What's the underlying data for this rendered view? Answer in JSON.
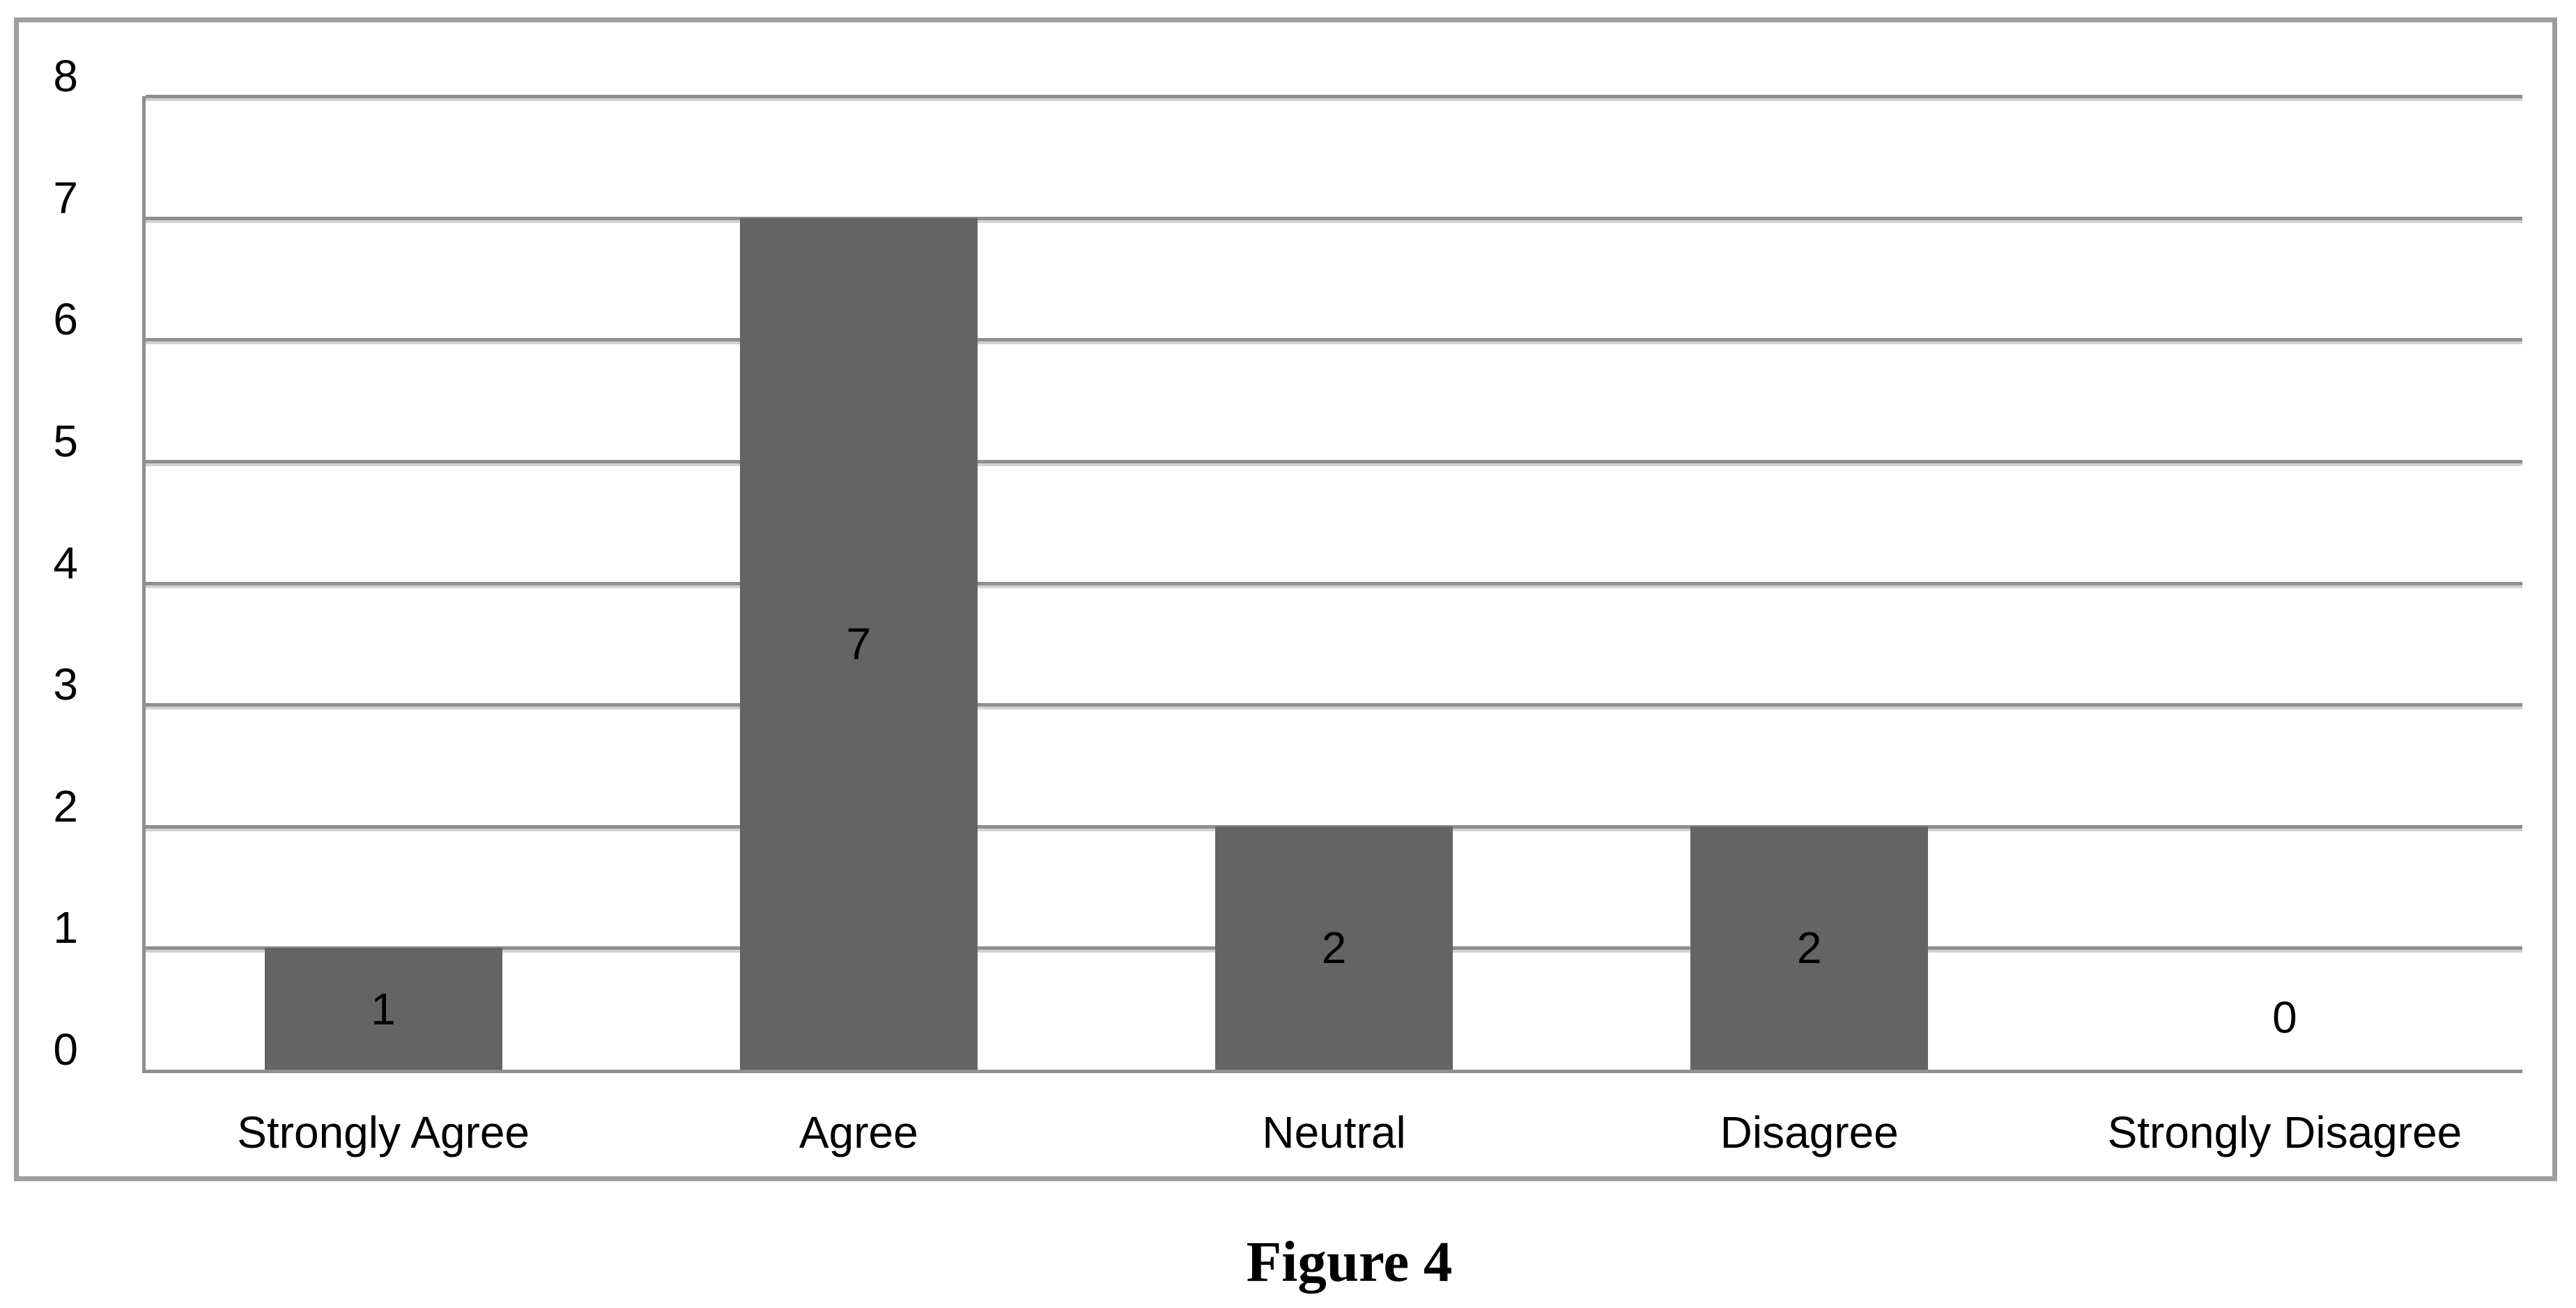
{
  "figure": {
    "caption": "Figure 4"
  },
  "chart_data": {
    "type": "bar",
    "categories": [
      "Strongly Agree",
      "Agree",
      "Neutral",
      "Disagree",
      "Strongly Disagree"
    ],
    "values": [
      1,
      7,
      2,
      2,
      0
    ],
    "data_labels": [
      "1",
      "7",
      "2",
      "2",
      "0"
    ],
    "title": "",
    "xlabel": "",
    "ylabel": "",
    "ylim": [
      0,
      8
    ],
    "yticks": [
      0,
      1,
      2,
      3,
      4,
      5,
      6,
      7,
      8
    ],
    "grid": "horizontal",
    "legend_position": "none",
    "bar_color": "#646464",
    "gridline_color": "#8f8f8f",
    "gridline_shadow_color": "#d2d2d2",
    "axis_line_color": "#8f8f8f",
    "outer_border_color": "#9e9e9e",
    "text_color": "#000000",
    "background_color": "#ffffff"
  }
}
